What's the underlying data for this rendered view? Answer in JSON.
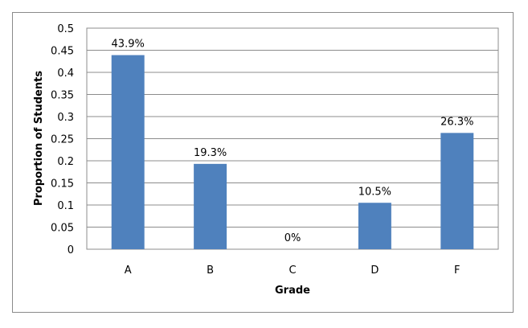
{
  "chart_data": {
    "type": "bar",
    "title": "",
    "xlabel": "Grade",
    "ylabel": "Proportion of Students",
    "categories": [
      "A",
      "B",
      "C",
      "D",
      "F"
    ],
    "values": [
      0.439,
      0.193,
      0,
      0.105,
      0.263
    ],
    "data_labels": [
      "43.9%",
      "19.3%",
      "0%",
      "10.5%",
      "26.3%"
    ],
    "ylim": [
      0,
      0.5
    ],
    "yticks": [
      0,
      0.05,
      0.1,
      0.15,
      0.2,
      0.25,
      0.3,
      0.35,
      0.4,
      0.45,
      0.5
    ],
    "ytick_labels": [
      "0",
      "0.05",
      "0.1",
      "0.15",
      "0.2",
      "0.25",
      "0.3",
      "0.35",
      "0.4",
      "0.45",
      "0.5"
    ],
    "grid": true,
    "legend": "none",
    "bar_color": "#4F81BD"
  }
}
